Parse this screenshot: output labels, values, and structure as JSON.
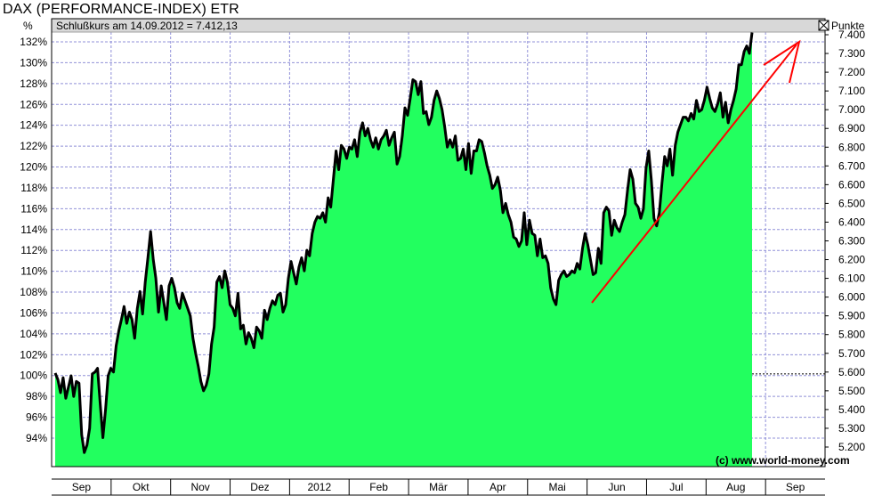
{
  "title": "DAX (PERFORMANCE-INDEX) ETR",
  "info_bar": "Schlußkurs am 14.09.2012 = 7.412,13",
  "left_unit": "%",
  "right_unit": "Punkte",
  "credit": "(c) www.world-money.com",
  "colors": {
    "fill": "#22ff5f",
    "line": "#000000",
    "grid": "#9090d8",
    "arrow": "#ff0000",
    "header": "#d8d8d8"
  },
  "chart_data": {
    "type": "area",
    "title": "DAX (PERFORMANCE-INDEX) ETR",
    "x_labels": [
      "Sep",
      "Okt",
      "Nov",
      "Dez",
      "2012",
      "Feb",
      "Mär",
      "Apr",
      "Mai",
      "Jun",
      "Jul",
      "Aug",
      "Sep"
    ],
    "left_axis": {
      "label": "%",
      "ticks": [
        "132%",
        "130%",
        "128%",
        "126%",
        "124%",
        "122%",
        "120%",
        "118%",
        "116%",
        "114%",
        "112%",
        "110%",
        "108%",
        "106%",
        "104%",
        "102%",
        "100%",
        "98%",
        "96%",
        "94%"
      ]
    },
    "right_axis": {
      "label": "Punkte",
      "ticks": [
        "7.400",
        "7.300",
        "7.200",
        "7.100",
        "7.000",
        "6.900",
        "6.800",
        "6.700",
        "6.600",
        "6.500",
        "6.400",
        "6.300",
        "6.200",
        "6.100",
        "6.000",
        "5.900",
        "5.800",
        "5.700",
        "5.600",
        "5.500",
        "5.400",
        "5.300",
        "5.200"
      ],
      "ylim": [
        5200,
        7400
      ]
    },
    "baseline": {
      "value": 5590,
      "label": "100%"
    },
    "series": [
      {
        "values": [
          5595,
          5560,
          5490,
          5570,
          5460,
          5520,
          5580,
          5470,
          5550,
          5540,
          5265,
          5170,
          5210,
          5300,
          5590,
          5600,
          5620,
          5430,
          5250,
          5400,
          5580,
          5620,
          5600,
          5740,
          5820,
          5880,
          5950,
          5860,
          5920,
          5880,
          5780,
          5940,
          6030,
          5910,
          6080,
          6210,
          6350,
          6200,
          6100,
          5920,
          6060,
          5970,
          5880,
          6060,
          6100,
          6050,
          5970,
          5940,
          6020,
          5980,
          5940,
          5900,
          5780,
          5700,
          5630,
          5550,
          5500,
          5530,
          5590,
          5750,
          5840,
          6080,
          6110,
          6050,
          6140,
          6080,
          5960,
          5940,
          5900,
          6020,
          5830,
          5850,
          5750,
          5810,
          5780,
          5730,
          5840,
          5820,
          5780,
          5930,
          5880,
          5940,
          5980,
          5960,
          6010,
          6020,
          5920,
          5960,
          6100,
          6190,
          6130,
          6070,
          6160,
          6210,
          6140,
          6250,
          6220,
          6340,
          6400,
          6430,
          6420,
          6450,
          6400,
          6530,
          6480,
          6630,
          6780,
          6680,
          6810,
          6790,
          6740,
          6800,
          6790,
          6840,
          6750,
          6880,
          6930,
          6860,
          6900,
          6840,
          6800,
          6850,
          6790,
          6840,
          6860,
          6890,
          6810,
          6850,
          6880,
          6710,
          6750,
          6860,
          7010,
          6970,
          7060,
          7160,
          7150,
          7080,
          7150,
          6980,
          6990,
          6920,
          6960,
          7050,
          7100,
          7060,
          7000,
          6910,
          6800,
          6840,
          6800,
          6860,
          6730,
          6740,
          6790,
          6680,
          6820,
          6660,
          6780,
          6780,
          6840,
          6830,
          6770,
          6700,
          6650,
          6580,
          6600,
          6640,
          6570,
          6450,
          6500,
          6440,
          6400,
          6320,
          6310,
          6270,
          6300,
          6450,
          6280,
          6410,
          6340,
          6330,
          6220,
          6310,
          6210,
          6220,
          6180,
          6050,
          5990,
          5960,
          6090,
          6120,
          6140,
          6110,
          6120,
          6140,
          6130,
          6180,
          6150,
          6260,
          6340,
          6280,
          6200,
          6120,
          6130,
          6260,
          6180,
          6450,
          6480,
          6460,
          6330,
          6410,
          6370,
          6350,
          6400,
          6440,
          6570,
          6680,
          6630,
          6500,
          6480,
          6420,
          6470,
          6690,
          6780,
          6620,
          6420,
          6380,
          6450,
          6610,
          6750,
          6700,
          6790,
          6650,
          6810,
          6880,
          6920,
          6960,
          6960,
          6940,
          6980,
          6950,
          7050,
          6990,
          7000,
          7050,
          7120,
          7060,
          7010,
          6990,
          7030,
          7090,
          6960,
          7040,
          6930,
          7000,
          7050,
          7110,
          7240,
          7240,
          7310,
          7340,
          7300,
          7412
        ]
      }
    ]
  }
}
